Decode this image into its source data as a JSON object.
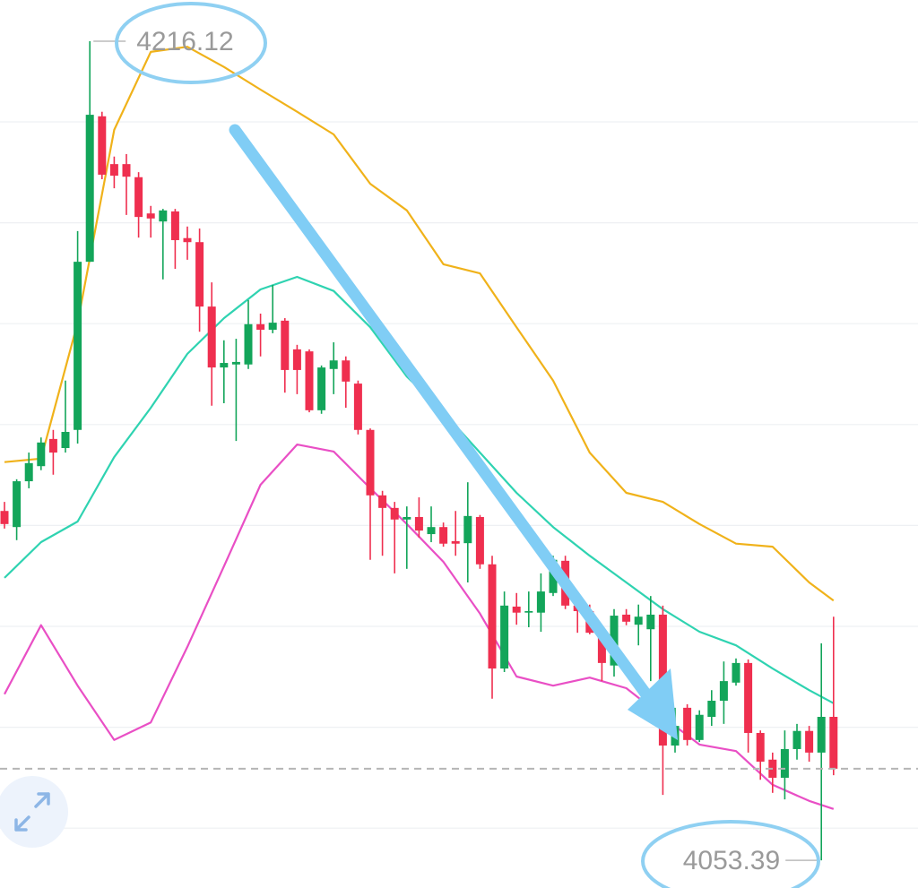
{
  "chart_data": {
    "type": "candlestick",
    "ylim": [
      4047.9,
      4224.3
    ],
    "up_color": "#13a55a",
    "down_color": "#ef2f4f",
    "annotations": [
      "4216.12",
      "4053.39"
    ],
    "open": [
      4122.8,
      4119.6,
      4128.7,
      4131.7,
      4137.1,
      4135.3,
      4138.9,
      4172.3,
      4201.2,
      4191.7,
      4191.7,
      4189.1,
      4181.9,
      4180.3,
      4182.3,
      4177.0,
      4176.2,
      4163.4,
      4151.3,
      4151.9,
      4151.9,
      4159.9,
      4158.8,
      4160.6,
      4154.9,
      4154.5,
      4142.8,
      4151.0,
      4152.7,
      4148.1,
      4138.9,
      4125.9,
      4123.4,
      4121.1,
      4121.6,
      4118.2,
      4119.6,
      4116.8,
      4116.4,
      4121.6,
      4112.2,
      4091.5,
      4103.8,
      4102.6,
      4102.6,
      4106.5,
      4112.9,
      4104.0,
      4102.9,
      4098.6,
      4092.1,
      4102.2,
      4100.2,
      4099.3,
      4102.2,
      4076.2,
      4083.7,
      4077.3,
      4081.9,
      4085.1,
      4088.7,
      4092.6,
      4078.7,
      4073.4,
      4069.8,
      4075.5,
      4079.1,
      4074.8,
      4081.9
    ],
    "high": [
      4124.6,
      4129.1,
      4134.4,
      4137.4,
      4138.9,
      4148.7,
      4178.4,
      4216.12,
      4202.1,
      4193.2,
      4193.7,
      4190.1,
      4183.4,
      4182.8,
      4182.8,
      4179.3,
      4178.9,
      4168.2,
      4156.7,
      4157.0,
      4164.7,
      4162.0,
      4167.7,
      4161.1,
      4155.8,
      4154.9,
      4151.7,
      4156.3,
      4153.5,
      4148.7,
      4139.2,
      4126.8,
      4124.6,
      4123.7,
      4125.5,
      4123.7,
      4120.5,
      4122.8,
      4128.5,
      4122.0,
      4113.9,
      4106.8,
      4106.5,
      4106.8,
      4110.4,
      4113.9,
      4113.9,
      4105.0,
      4104.2,
      4099.7,
      4103.3,
      4103.3,
      4104.2,
      4105.9,
      4104.0,
      4083.7,
      4084.4,
      4083.2,
      4087.2,
      4092.9,
      4093.5,
      4093.3,
      4079.2,
      4074.8,
      4079.2,
      4080.5,
      4080.1,
      4096.5,
      4101.8
    ],
    "low": [
      4119.3,
      4117.0,
      4127.3,
      4130.9,
      4130.0,
      4134.4,
      4136.2,
      4172.3,
      4188.7,
      4186.9,
      4181.6,
      4177.1,
      4177.1,
      4168.8,
      4170.9,
      4172.7,
      4158.4,
      4143.7,
      4144.2,
      4136.7,
      4151.0,
      4153.5,
      4158.1,
      4146.3,
      4146.0,
      4142.4,
      4142.1,
      4146.0,
      4143.3,
      4138.0,
      4113.1,
      4113.9,
      4110.4,
      4111.3,
      4117.5,
      4116.6,
      4115.7,
      4113.9,
      4108.6,
      4111.3,
      4085.5,
      4090.8,
      4100.2,
      4099.7,
      4098.8,
      4105.9,
      4103.3,
      4098.6,
      4098.3,
      4089.0,
      4089.9,
      4100.1,
      4096.1,
      4089.0,
      4066.4,
      4074.8,
      4076.2,
      4076.9,
      4080.1,
      4080.5,
      4088.1,
      4074.8,
      4069.4,
      4066.8,
      4065.5,
      4073.4,
      4073.0,
      4053.39,
      4070.3
    ],
    "close": [
      4120.2,
      4128.7,
      4132.3,
      4136.4,
      4134.4,
      4138.5,
      4172.3,
      4201.5,
      4189.6,
      4189.4,
      4189.2,
      4181.2,
      4180.9,
      4182.5,
      4176.6,
      4176.2,
      4163.4,
      4151.3,
      4152.2,
      4152.4,
      4159.9,
      4158.8,
      4160.2,
      4150.8,
      4150.8,
      4142.8,
      4151.3,
      4152.7,
      4148.5,
      4138.9,
      4125.9,
      4123.4,
      4121.1,
      4121.6,
      4118.9,
      4119.6,
      4116.3,
      4116.3,
      4121.8,
      4112.2,
      4091.5,
      4104.0,
      4102.6,
      4102.9,
      4106.8,
      4113.1,
      4104.0,
      4102.9,
      4098.6,
      4092.6,
      4102.0,
      4100.8,
      4101.8,
      4102.2,
      4076.2,
      4080.1,
      4077.3,
      4082.3,
      4085.1,
      4089.0,
      4092.6,
      4078.7,
      4073.0,
      4069.8,
      4075.5,
      4079.1,
      4074.8,
      4081.9,
      4071.6
    ],
    "lines": [
      {
        "color": "#f0b21a",
        "x": [
          0,
          3,
          6,
          9,
          12,
          15,
          18,
          21,
          24,
          27,
          30,
          33,
          36,
          39,
          42,
          45,
          48,
          51,
          54,
          57,
          60,
          63,
          66,
          68
        ],
        "values": [
          4132.5,
          4133.2,
          4160.2,
          4198.5,
          4214.0,
          4215.0,
          4211.0,
          4206.5,
          4202.1,
          4197.6,
          4187.8,
          4182.5,
          4171.8,
          4170.0,
          4159.3,
          4148.7,
          4134.4,
          4126.4,
          4124.6,
          4120.2,
          4116.3,
          4115.7,
          4108.6,
          4105.0
        ]
      },
      {
        "color": "#2fd3b1",
        "x": [
          0,
          3,
          6,
          9,
          12,
          15,
          18,
          21,
          24,
          27,
          30,
          33,
          36,
          39,
          42,
          45,
          48,
          51,
          54,
          57,
          60,
          63,
          66,
          68
        ],
        "values": [
          4109.5,
          4116.6,
          4120.7,
          4133.5,
          4143.3,
          4154.0,
          4161.1,
          4166.8,
          4169.3,
          4166.5,
          4159.3,
          4149.5,
          4142.4,
          4134.4,
          4126.4,
          4119.6,
          4113.9,
          4108.6,
          4103.3,
          4098.8,
          4096.1,
          4091.5,
          4087.2,
          4084.6
        ]
      },
      {
        "color": "#e94fc5",
        "x": [
          0,
          3,
          6,
          9,
          12,
          15,
          18,
          21,
          24,
          27,
          30,
          33,
          36,
          39,
          42,
          45,
          48,
          51,
          54,
          57,
          60,
          63,
          66,
          68
        ],
        "values": [
          4086.4,
          4100.1,
          4088.1,
          4077.3,
          4080.8,
          4095.8,
          4111.8,
          4128.0,
          4136.0,
          4134.6,
          4127.3,
          4120.2,
          4112.7,
          4102.4,
          4089.9,
          4088.1,
          4089.7,
          4087.6,
          4081.9,
          4076.4,
          4075.1,
          4068.4,
          4065.2,
          4063.6
        ]
      }
    ]
  }
}
